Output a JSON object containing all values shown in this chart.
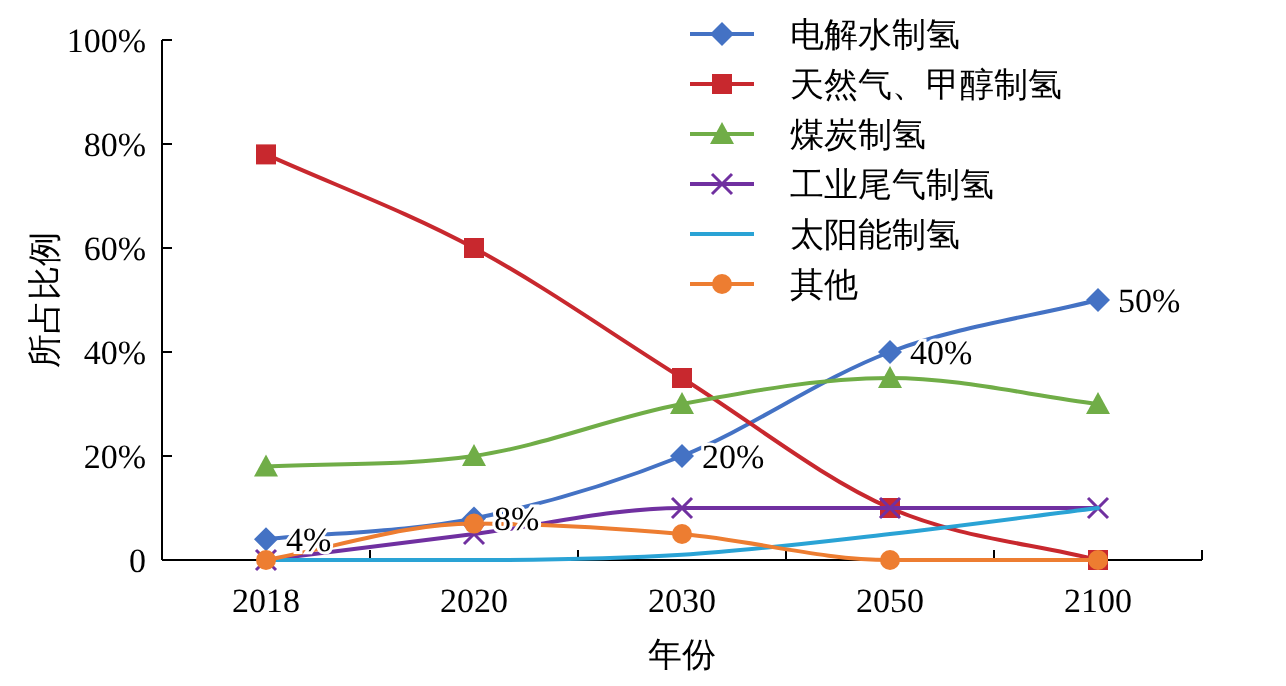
{
  "chart_data": {
    "type": "line",
    "xlabel": "年份",
    "ylabel": "所占比例",
    "legend": "top right",
    "categories": [
      "2018",
      "2020",
      "2030",
      "2050",
      "2100"
    ],
    "ylim": [
      0,
      100
    ],
    "yticks": [
      {
        "value": 0,
        "label": "0"
      },
      {
        "value": 20,
        "label": "20%"
      },
      {
        "value": 40,
        "label": "40%"
      },
      {
        "value": 60,
        "label": "60%"
      },
      {
        "value": 80,
        "label": "80%"
      },
      {
        "value": 100,
        "label": "100%"
      }
    ],
    "series": [
      {
        "name": "电解水制氢",
        "color": "#4472c4",
        "marker": "diamond",
        "values": [
          4,
          8,
          20,
          40,
          50
        ],
        "value_labels": [
          "4%",
          "8%",
          "20%",
          "40%",
          "50%"
        ]
      },
      {
        "name": "天然气、甲醇制氢",
        "color": "#c8282e",
        "marker": "square",
        "values": [
          78,
          60,
          35,
          10,
          0
        ]
      },
      {
        "name": "煤炭制氢",
        "color": "#70ad47",
        "marker": "triangle",
        "values": [
          18,
          20,
          30,
          35,
          30
        ]
      },
      {
        "name": "工业尾气制氢",
        "color": "#7030a0",
        "marker": "cross",
        "values": [
          0,
          5,
          10,
          10,
          10
        ]
      },
      {
        "name": "太阳能制氢",
        "color": "#2aa3d5",
        "marker": "none",
        "values": [
          0,
          0,
          1,
          5,
          10
        ]
      },
      {
        "name": "其他",
        "color": "#ed7d31",
        "marker": "circle",
        "values": [
          0,
          7,
          5,
          0,
          0
        ]
      }
    ]
  }
}
